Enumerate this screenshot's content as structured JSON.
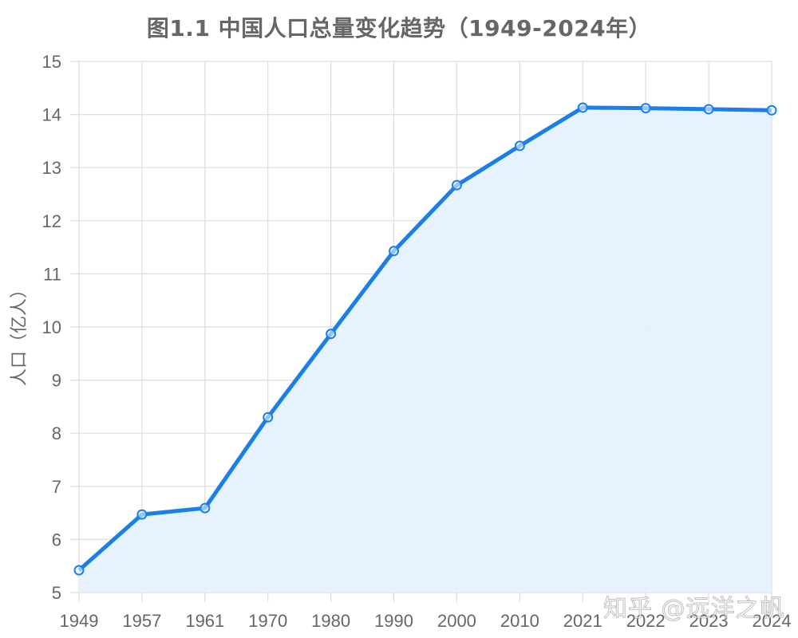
{
  "chart": {
    "title": "图1.1 中国人口总量变化趋势（1949-2024年）",
    "ylabel": "人口（亿人）",
    "watermark": "知乎 @远洋之帆"
  },
  "colors": {
    "line": "#1a7fe8",
    "fill": "#e3f1fd",
    "grid": "#dddddd",
    "text": "#666666"
  },
  "chart_data": {
    "type": "line",
    "title": "图1.1 中国人口总量变化趋势（1949-2024年）",
    "xlabel": "",
    "ylabel": "人口（亿人）",
    "categories": [
      "1949",
      "1957",
      "1961",
      "1970",
      "1980",
      "1990",
      "2000",
      "2010",
      "2021",
      "2022",
      "2023",
      "2024"
    ],
    "series": [
      {
        "name": "人口（亿人）",
        "values": [
          5.42,
          6.47,
          6.59,
          8.3,
          9.87,
          11.43,
          12.67,
          13.41,
          14.13,
          14.12,
          14.1,
          14.08
        ],
        "filled": true
      }
    ],
    "ylim": [
      5,
      15
    ],
    "yticks": [
      5,
      6,
      7,
      8,
      9,
      10,
      11,
      12,
      13,
      14,
      15
    ],
    "grid": true,
    "legend": "none"
  }
}
